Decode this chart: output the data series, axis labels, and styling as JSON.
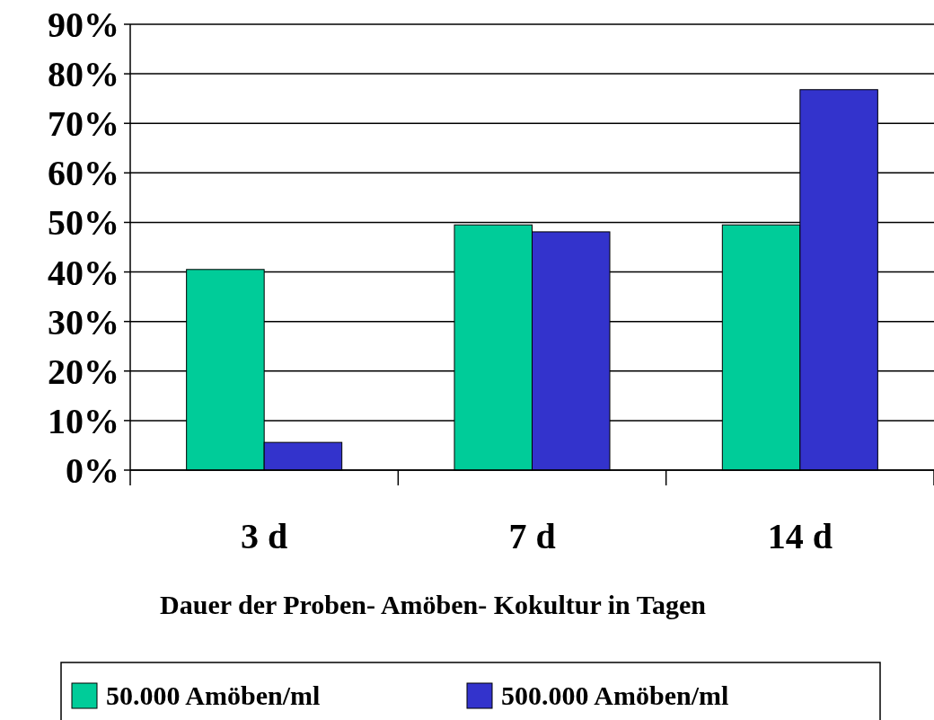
{
  "chart_data": {
    "type": "bar",
    "xlabel": "Dauer der Proben- Amöben- Kokultur in Tagen",
    "categories": [
      "3 d",
      "7 d",
      "14 d"
    ],
    "series": [
      {
        "name": "50.000 Amöben/ml",
        "color": "#00cc99",
        "values": [
          40.5,
          49.5,
          49.5
        ]
      },
      {
        "name": "500.000 Amöben/ml",
        "color": "#3333cc",
        "values": [
          5.6,
          48.1,
          76.8
        ]
      }
    ],
    "ylim": [
      0,
      90
    ],
    "yticks": [
      {
        "value": 0,
        "label": "0%"
      },
      {
        "value": 10,
        "label": "10%"
      },
      {
        "value": 20,
        "label": "20%"
      },
      {
        "value": 30,
        "label": "30%"
      },
      {
        "value": 40,
        "label": "40%"
      },
      {
        "value": 50,
        "label": "50%"
      },
      {
        "value": 60,
        "label": "60%"
      },
      {
        "value": 70,
        "label": "70%"
      },
      {
        "value": 80,
        "label": "80%"
      },
      {
        "value": 90,
        "label": "90%"
      }
    ],
    "grid": "y",
    "legend": "bottom"
  }
}
